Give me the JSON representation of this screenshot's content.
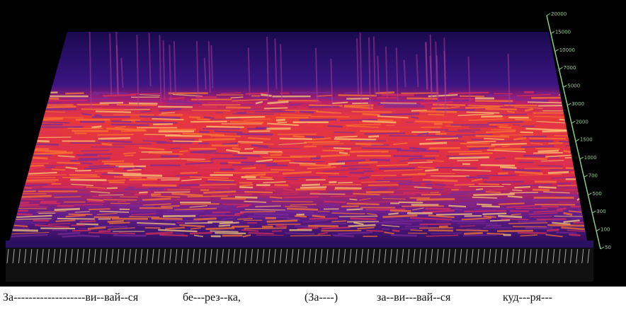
{
  "axis": {
    "frequency_ticks": [
      "20000",
      "15000",
      "10000",
      "7000",
      "5000",
      "3000",
      "2000",
      "1500",
      "1000",
      "700",
      "500",
      "300",
      "100",
      "50"
    ]
  },
  "lyrics": [
    {
      "text": "За-------------------ви--вай--ся"
    },
    {
      "text": "бе---рез--ка,"
    },
    {
      "text": "(За----)"
    },
    {
      "text": "за--ви---вай--ся"
    },
    {
      "text": "куд---ря---"
    }
  ]
}
